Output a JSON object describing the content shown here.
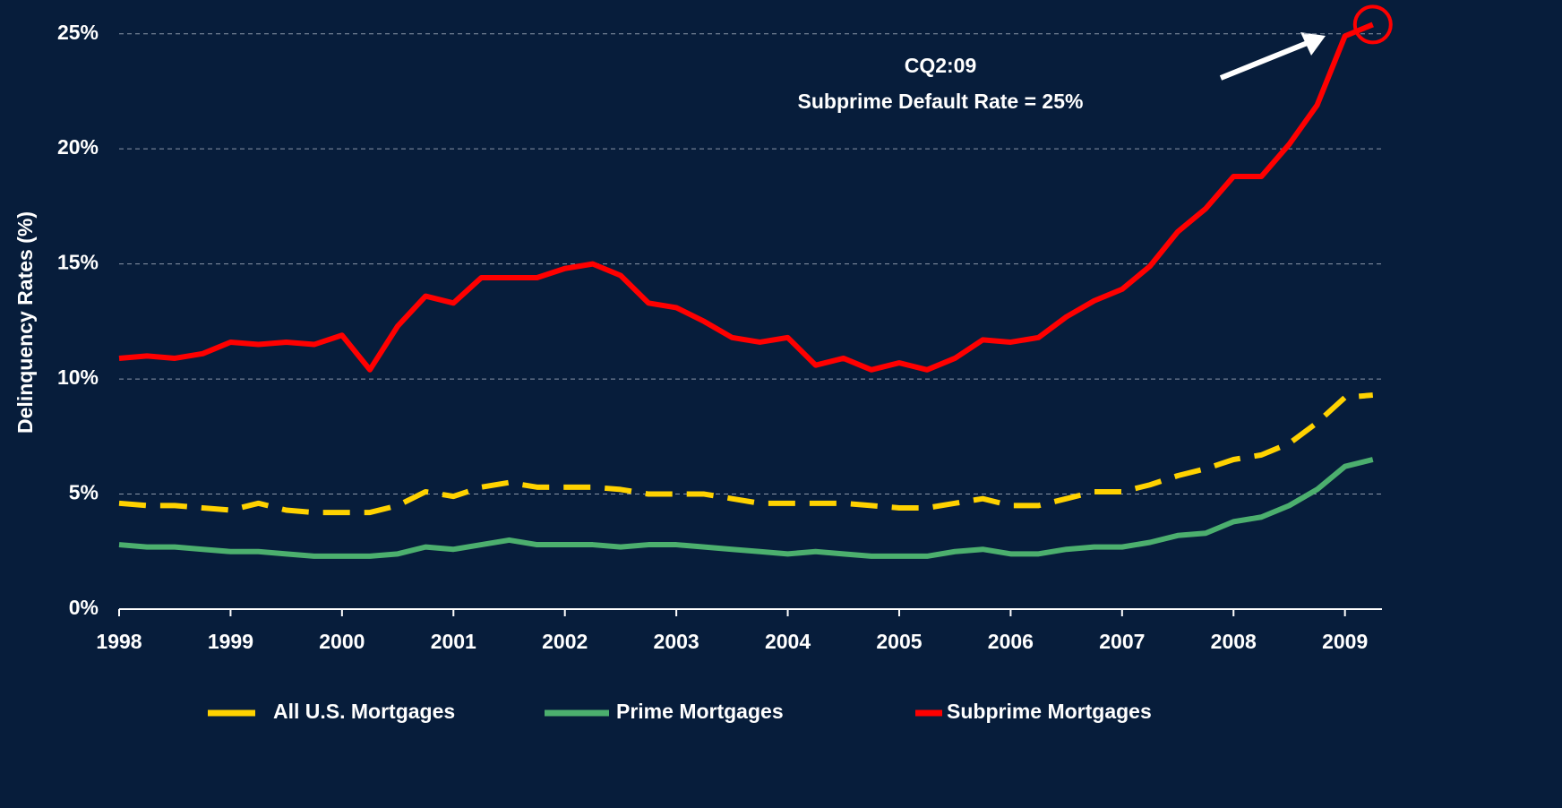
{
  "chart_data": {
    "type": "line",
    "y_label": "Delinquency Rates (%)",
    "annotation": [
      "CQ2:09",
      "Subprime Default Rate = 25%"
    ],
    "x": [
      1998,
      1998.25,
      1998.5,
      1998.75,
      1999,
      1999.25,
      1999.5,
      1999.75,
      2000,
      2000.25,
      2000.5,
      2000.75,
      2001,
      2001.25,
      2001.5,
      2001.75,
      2002,
      2002.25,
      2002.5,
      2002.75,
      2003,
      2003.25,
      2003.5,
      2003.75,
      2004,
      2004.25,
      2004.5,
      2004.75,
      2005,
      2005.25,
      2005.5,
      2005.75,
      2006,
      2006.25,
      2006.5,
      2006.75,
      2007,
      2007.25,
      2007.5,
      2007.75,
      2008,
      2008.25,
      2008.5,
      2008.75,
      2009,
      2009.25
    ],
    "series": [
      {
        "name": "All U.S. Mortgages",
        "color": "#ffd200",
        "dashed": true,
        "values": [
          4.6,
          4.5,
          4.5,
          4.4,
          4.3,
          4.6,
          4.3,
          4.2,
          4.2,
          4.2,
          4.5,
          5.1,
          4.9,
          5.3,
          5.5,
          5.3,
          5.3,
          5.3,
          5.2,
          5.0,
          5.0,
          5.0,
          4.8,
          4.6,
          4.6,
          4.6,
          4.6,
          4.5,
          4.4,
          4.4,
          4.6,
          4.8,
          4.5,
          4.5,
          4.8,
          5.1,
          5.1,
          5.4,
          5.8,
          6.1,
          6.5,
          6.7,
          7.2,
          8.1,
          9.2,
          9.3
        ]
      },
      {
        "name": "Prime Mortgages",
        "color": "#4caf6e",
        "dashed": false,
        "values": [
          2.8,
          2.7,
          2.7,
          2.6,
          2.5,
          2.5,
          2.4,
          2.3,
          2.3,
          2.3,
          2.4,
          2.7,
          2.6,
          2.8,
          3.0,
          2.8,
          2.8,
          2.8,
          2.7,
          2.8,
          2.8,
          2.7,
          2.6,
          2.5,
          2.4,
          2.5,
          2.4,
          2.3,
          2.3,
          2.3,
          2.5,
          2.6,
          2.4,
          2.4,
          2.6,
          2.7,
          2.7,
          2.9,
          3.2,
          3.3,
          3.8,
          4.0,
          4.5,
          5.2,
          6.2,
          6.5
        ]
      },
      {
        "name": "Subprime Mortgages",
        "color": "#ff0000",
        "dashed": false,
        "values": [
          10.9,
          11.0,
          10.9,
          11.1,
          11.6,
          11.5,
          11.6,
          11.5,
          11.9,
          10.4,
          12.3,
          13.6,
          13.3,
          14.4,
          14.4,
          14.4,
          14.8,
          15.0,
          14.5,
          13.3,
          13.1,
          12.5,
          11.8,
          11.6,
          11.8,
          10.6,
          10.9,
          10.4,
          10.7,
          10.4,
          10.9,
          11.7,
          11.6,
          11.8,
          12.7,
          13.4,
          13.9,
          14.9,
          16.4,
          17.4,
          18.8,
          18.8,
          20.2,
          21.9,
          24.9,
          25.4
        ]
      }
    ],
    "xlim": [
      1998,
      2009.3
    ],
    "xticks": [
      1998,
      1999,
      2000,
      2001,
      2002,
      2003,
      2004,
      2005,
      2006,
      2007,
      2008,
      2009
    ],
    "ylim": [
      0,
      26
    ],
    "yticks": [
      {
        "value": 0,
        "label": "0%"
      },
      {
        "value": 5,
        "label": "5%"
      },
      {
        "value": 10,
        "label": "10%"
      },
      {
        "value": 15,
        "label": "15%"
      },
      {
        "value": 20,
        "label": "20%"
      },
      {
        "value": 25,
        "label": "25%"
      }
    ],
    "grid": true,
    "legend": "bottom"
  }
}
